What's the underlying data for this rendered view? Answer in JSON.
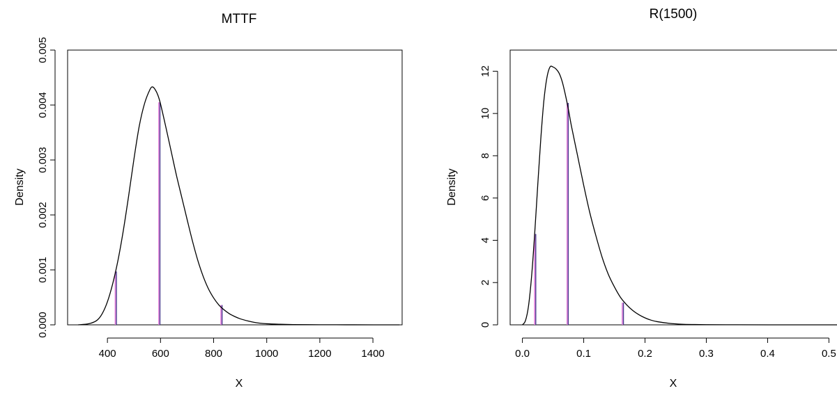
{
  "colors": {
    "primary_line": "#4a3b8f",
    "secondary_line": "#e07ad8",
    "curve": "#000000"
  },
  "chart_data": [
    {
      "type": "line",
      "title": "MTTF",
      "xlabel": "X",
      "ylabel": "Density",
      "xlim": [
        250,
        1510
      ],
      "ylim": [
        0,
        0.005
      ],
      "xticks": [
        400,
        600,
        800,
        1000,
        1200,
        1400
      ],
      "xtick_labels": [
        "400",
        "600",
        "800",
        "1000",
        "1200",
        "1400"
      ],
      "yticks": [
        0,
        0.001,
        0.002,
        0.003,
        0.004,
        0.005
      ],
      "ytick_labels": [
        "0.000",
        "0.001",
        "0.002",
        "0.003",
        "0.004",
        "0.005"
      ],
      "density": {
        "x": [
          290,
          330,
          360,
          380,
          400,
          420,
          440,
          460,
          480,
          500,
          520,
          540,
          560,
          570,
          580,
          590,
          600,
          620,
          640,
          660,
          680,
          700,
          720,
          740,
          760,
          780,
          800,
          820,
          840,
          860,
          880,
          900,
          930,
          960,
          1000,
          1050,
          1100,
          1200,
          1300,
          1400,
          1500
        ],
        "y": [
          0,
          2e-05,
          8e-05,
          0.0002,
          0.00042,
          0.00075,
          0.00118,
          0.00172,
          0.00235,
          0.00302,
          0.00362,
          0.00403,
          0.00428,
          0.00433,
          0.00428,
          0.00418,
          0.00402,
          0.0036,
          0.00316,
          0.00272,
          0.00232,
          0.00192,
          0.00153,
          0.00118,
          0.00089,
          0.00066,
          0.00049,
          0.00036,
          0.00027,
          0.0002,
          0.00015,
          0.00011,
          7e-05,
          4e-05,
          2e-05,
          1e-05,
          5e-06,
          2e-06,
          1e-06,
          0,
          0
        ]
      },
      "vertical_lines": [
        {
          "x": 432,
          "height": 0.00097
        },
        {
          "x": 596,
          "height": 0.00405
        },
        {
          "x": 830,
          "height": 0.00036
        }
      ]
    },
    {
      "type": "line",
      "title": "R(1500)",
      "xlabel": "X",
      "ylabel": "Density",
      "xlim": [
        -0.02,
        0.52
      ],
      "ylim": [
        0,
        13
      ],
      "xticks": [
        0.0,
        0.1,
        0.2,
        0.3,
        0.4,
        0.5
      ],
      "xtick_labels": [
        "0.0",
        "0.1",
        "0.2",
        "0.3",
        "0.4",
        "0.5"
      ],
      "yticks": [
        0,
        2,
        4,
        6,
        8,
        10,
        12
      ],
      "ytick_labels": [
        "0",
        "2",
        "4",
        "6",
        "8",
        "10",
        "12"
      ],
      "density": {
        "x": [
          0.0,
          0.005,
          0.01,
          0.015,
          0.02,
          0.025,
          0.03,
          0.035,
          0.04,
          0.045,
          0.05,
          0.055,
          0.06,
          0.065,
          0.07,
          0.075,
          0.08,
          0.09,
          0.1,
          0.11,
          0.12,
          0.13,
          0.14,
          0.15,
          0.16,
          0.17,
          0.18,
          0.19,
          0.2,
          0.21,
          0.22,
          0.24,
          0.26,
          0.28,
          0.3,
          0.35,
          0.4,
          0.45,
          0.5,
          0.52
        ],
        "y": [
          0,
          0.2,
          0.9,
          2.3,
          4.3,
          6.6,
          8.8,
          10.6,
          11.7,
          12.2,
          12.2,
          12.1,
          11.9,
          11.5,
          10.9,
          10.2,
          9.4,
          8.0,
          6.6,
          5.3,
          4.2,
          3.2,
          2.4,
          1.8,
          1.3,
          0.95,
          0.68,
          0.48,
          0.33,
          0.22,
          0.15,
          0.07,
          0.03,
          0.015,
          0.008,
          0.003,
          0.001,
          0,
          0,
          0
        ]
      },
      "vertical_lines": [
        {
          "x": 0.021,
          "height": 4.3
        },
        {
          "x": 0.074,
          "height": 10.5
        },
        {
          "x": 0.164,
          "height": 1.05
        }
      ]
    }
  ]
}
